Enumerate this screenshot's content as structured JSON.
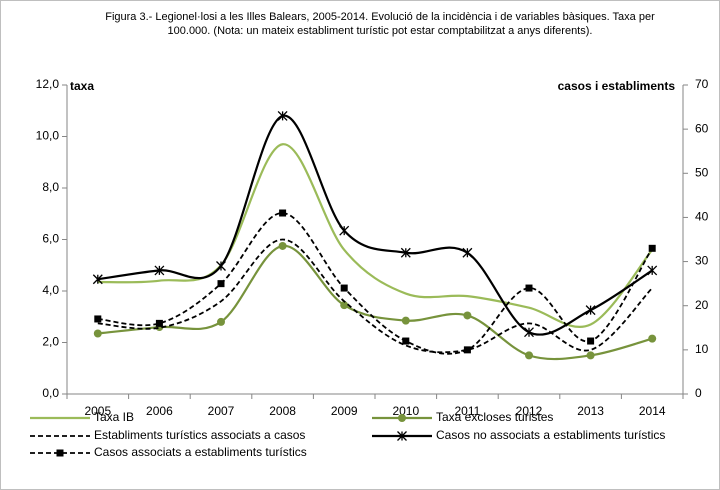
{
  "chart_data": {
    "type": "line",
    "title": "Figura 3.- Legionel·losi a les Illes Balears, 2005-2014. Evolució de la incidència i de variables bàsiques. Taxa per 100.000. (Nota: un mateix establiment turístic pot estar comptabilitzat a anys diferents).",
    "ylabel": "taxa",
    "y2label": "casos i establiments",
    "categories": [
      "2005",
      "2006",
      "2007",
      "2008",
      "2009",
      "2010",
      "2011",
      "2012",
      "2013",
      "2014"
    ],
    "ylim": [
      0,
      12
    ],
    "yticks": [
      {
        "value": 0,
        "label": "0,0"
      },
      {
        "value": 2,
        "label": "2,0"
      },
      {
        "value": 4,
        "label": "4,0"
      },
      {
        "value": 6,
        "label": "6,0"
      },
      {
        "value": 8,
        "label": "8,0"
      },
      {
        "value": 10,
        "label": "10,0"
      },
      {
        "value": 12,
        "label": "12,0"
      }
    ],
    "y2lim": [
      0,
      70
    ],
    "y2ticks": [
      0,
      10,
      20,
      30,
      40,
      50,
      60,
      70
    ],
    "smooth": true,
    "series": [
      {
        "name": "Taxa IB",
        "color": "#9bbb59",
        "dash": false,
        "marker": null,
        "values": [
          4.35,
          4.4,
          5.0,
          9.7,
          5.6,
          3.9,
          3.8,
          3.35,
          2.7,
          5.6
        ]
      },
      {
        "name": "Taxa  excloses turistes",
        "color": "#77933c",
        "dash": false,
        "marker": "circle",
        "values": [
          2.35,
          2.6,
          2.8,
          5.75,
          3.45,
          2.85,
          3.05,
          1.5,
          1.5,
          2.15
        ]
      },
      {
        "name": "Establiments turístics associats a casos",
        "color": "#000000",
        "dash": true,
        "marker": null,
        "axis": "y2",
        "values": [
          16,
          15,
          21,
          35,
          21,
          11,
          10,
          16,
          10,
          24
        ]
      },
      {
        "name": "Casos no associats a  establiments turístics",
        "color": "#000000",
        "dash": false,
        "marker": "star",
        "axis": "y2",
        "values": [
          26,
          28,
          29,
          63,
          37,
          32,
          32,
          14,
          19,
          28
        ]
      },
      {
        "name": "Casos associats a  establiments turístics",
        "color": "#000000",
        "dash": true,
        "marker": "square",
        "axis": "y2",
        "values": [
          17,
          16,
          25,
          41,
          24,
          12,
          10,
          24,
          12,
          33
        ]
      }
    ]
  }
}
